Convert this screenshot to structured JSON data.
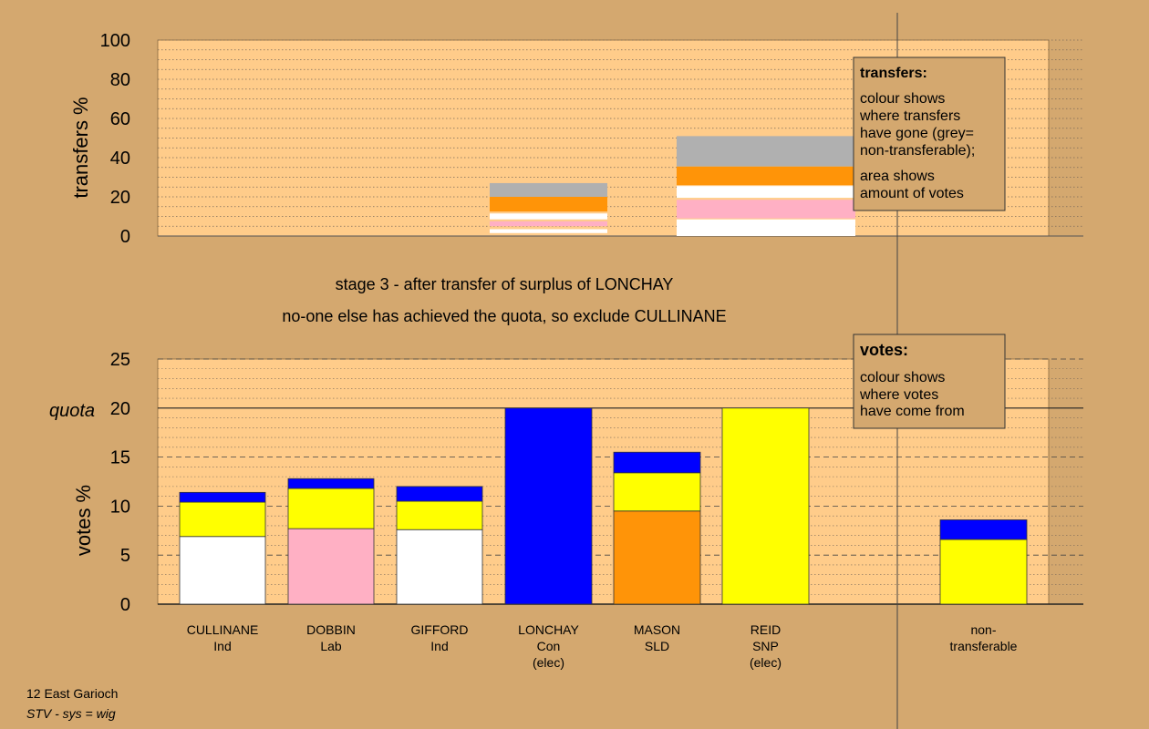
{
  "colors": {
    "page_bg": "#d4a86f",
    "plot_bg": "#ffcc8a",
    "white": "#ffffff",
    "pink": "#ffb0c4",
    "orange": "#ff9408",
    "blue": "#0000ff",
    "yellow": "#ffff00",
    "grey": "#b0b0b0"
  },
  "headings": {
    "stage": "stage 3 - after transfer of surplus of LONCHAY",
    "action": "no-one else has achieved the quota, so exclude CULLINANE"
  },
  "footer": {
    "ward": "12 East Garioch",
    "system": "STV - sys = wig"
  },
  "legend_transfers": {
    "title": "transfers:",
    "line1": "colour shows",
    "line2": "where transfers",
    "line3": "have gone (grey=",
    "line4": "non-transferable);",
    "line5": "area shows",
    "line6": "amount of votes"
  },
  "legend_votes": {
    "title": "votes:",
    "line1": "colour shows",
    "line2": "where votes",
    "line3": "have come from"
  },
  "chart_data": [
    {
      "type": "bar",
      "stacked": true,
      "ylabel": "transfers %",
      "ylim": [
        0,
        100
      ],
      "yticks": [
        0,
        20,
        40,
        60,
        80,
        100
      ],
      "grid": true,
      "note": "transfers out of LONCHAY (narrower column) and REID (wider column); stacked segments bottom to top",
      "columns": [
        {
          "source": "LONCHAY",
          "segments": [
            {
              "color": "white",
              "from": 1.5,
              "to": 3.5
            },
            {
              "color": "pink",
              "from": 5,
              "to": 7.5
            },
            {
              "color": "white",
              "from": 8.5,
              "to": 11.5
            },
            {
              "color": "orange",
              "from": 12.5,
              "to": 20
            },
            {
              "color": "grey",
              "from": 20,
              "to": 27
            }
          ]
        },
        {
          "source": "REID",
          "segments": [
            {
              "color": "white",
              "from": 0,
              "to": 8.5
            },
            {
              "color": "pink",
              "from": 9,
              "to": 18.5
            },
            {
              "color": "white",
              "from": 19.5,
              "to": 25.5
            },
            {
              "color": "orange",
              "from": 26,
              "to": 35.5
            },
            {
              "color": "grey",
              "from": 35.5,
              "to": 51
            }
          ]
        }
      ]
    },
    {
      "type": "bar",
      "stacked": true,
      "ylabel": "votes %",
      "ylim": [
        0,
        25
      ],
      "yticks": [
        0,
        5,
        10,
        15,
        20,
        25
      ],
      "quota": 20,
      "quota_label": "quota",
      "grid": true,
      "categories": [
        {
          "name": "CULLINANE",
          "party": "Ind",
          "status": ""
        },
        {
          "name": "DOBBIN",
          "party": "Lab",
          "status": ""
        },
        {
          "name": "GIFFORD",
          "party": "Ind",
          "status": ""
        },
        {
          "name": "LONCHAY",
          "party": "Con",
          "status": "(elec)"
        },
        {
          "name": "MASON",
          "party": "SLD",
          "status": ""
        },
        {
          "name": "REID",
          "party": "SNP",
          "status": "(elec)"
        },
        {
          "name": "non-",
          "party": "transferable",
          "status": ""
        }
      ],
      "series": [
        {
          "color": "white",
          "values": [
            6.9,
            0,
            7.6,
            0,
            0,
            0,
            0
          ]
        },
        {
          "color": "pink",
          "values": [
            0,
            7.7,
            0,
            0,
            0,
            0,
            0
          ]
        },
        {
          "color": "orange",
          "values": [
            0,
            0,
            0,
            0,
            9.5,
            0,
            0
          ]
        },
        {
          "color": "yellow",
          "values": [
            3.5,
            4.1,
            2.9,
            0,
            3.9,
            20,
            6.6
          ]
        },
        {
          "color": "blue",
          "values": [
            1.0,
            1.0,
            1.5,
            20,
            2.1,
            0,
            2.0
          ]
        }
      ]
    }
  ]
}
